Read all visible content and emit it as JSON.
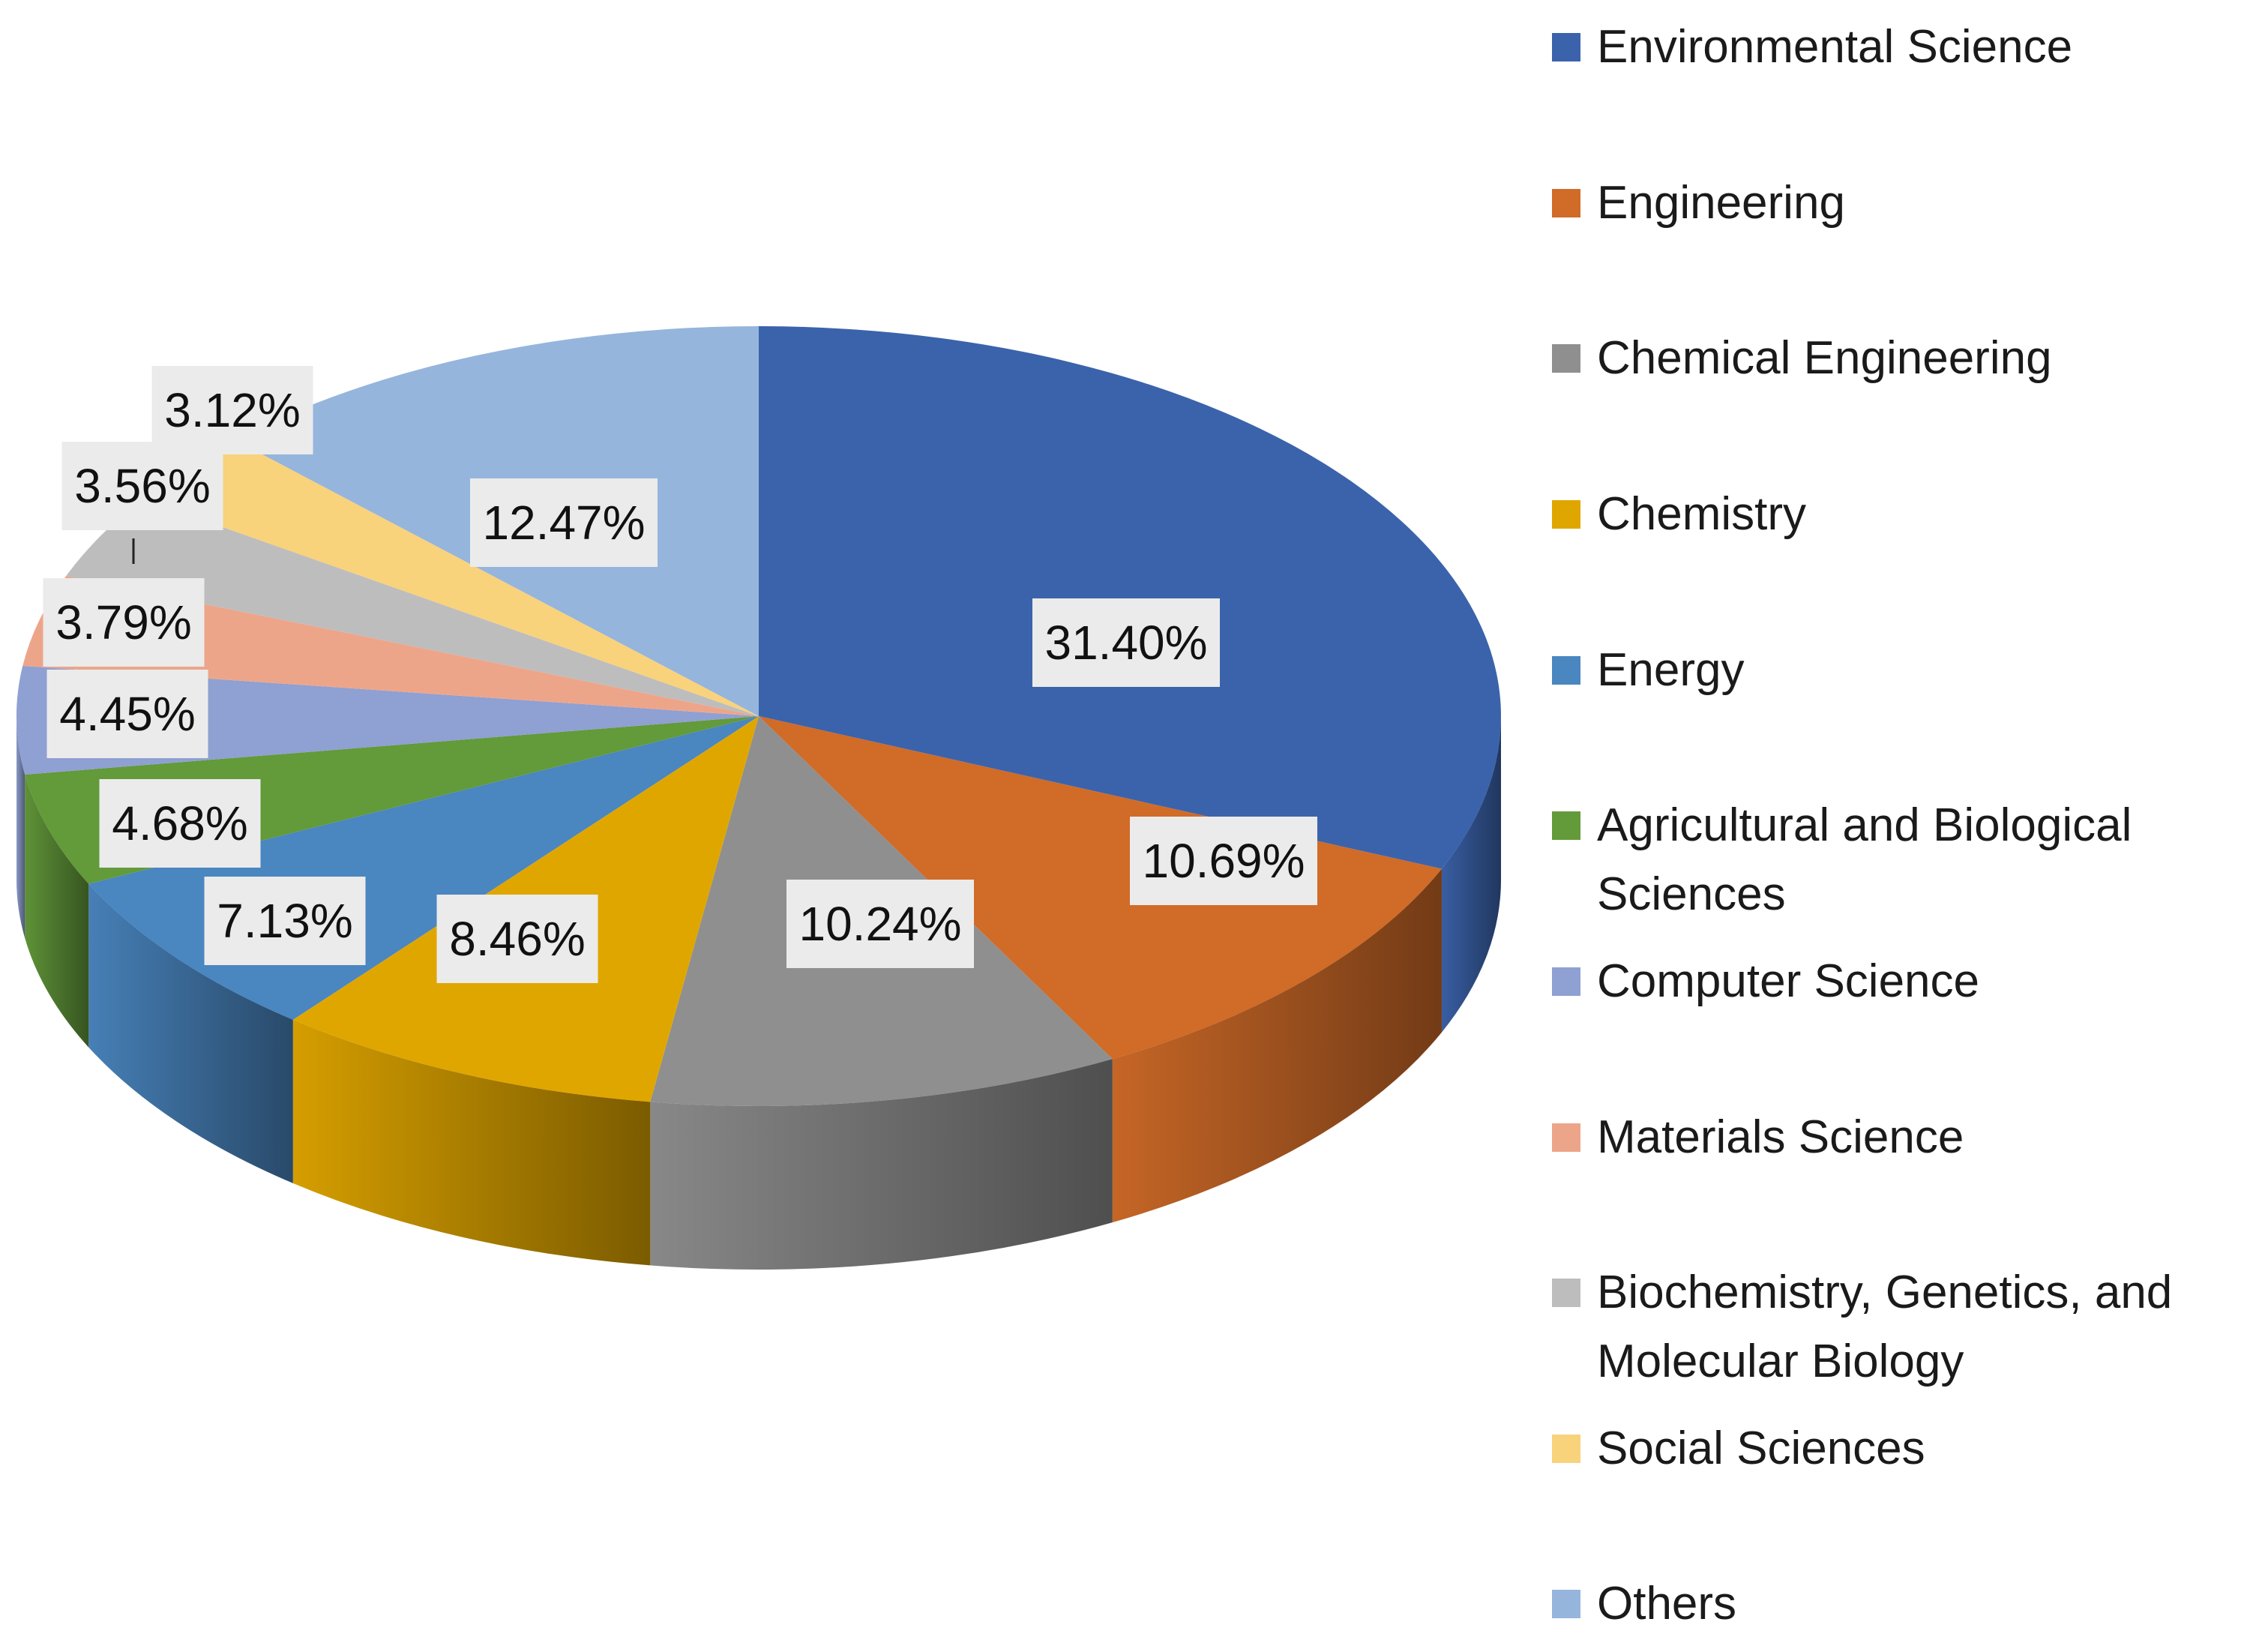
{
  "chart_data": {
    "type": "pie",
    "style": "3d",
    "title": "",
    "slices": [
      {
        "label": "Environmental Science",
        "value": 31.4,
        "display": "31.40%",
        "color": "#3B63AB"
      },
      {
        "label": "Engineering",
        "value": 10.69,
        "display": "10.69%",
        "color": "#D06B28"
      },
      {
        "label": "Chemical Engineering",
        "value": 10.24,
        "display": "10.24%",
        "color": "#8F8F8F"
      },
      {
        "label": "Chemistry",
        "value": 8.46,
        "display": "8.46%",
        "color": "#E0A600"
      },
      {
        "label": "Energy",
        "value": 7.13,
        "display": "7.13%",
        "color": "#4A86C0"
      },
      {
        "label": "Agricultural and Biological Sciences",
        "value": 4.68,
        "display": "4.68%",
        "color": "#639A3A"
      },
      {
        "label": "Computer Science",
        "value": 4.45,
        "display": "4.45%",
        "color": "#8FA0D2"
      },
      {
        "label": "Materials Science",
        "value": 3.79,
        "display": "3.79%",
        "color": "#EDA58A"
      },
      {
        "label": "Biochemistry, Genetics, and Molecular Biology",
        "value": 3.56,
        "display": "3.56%",
        "color": "#BDBDBD"
      },
      {
        "label": "Social Sciences",
        "value": 3.12,
        "display": "3.12%",
        "color": "#F9D27C"
      },
      {
        "label": "Others",
        "value": 12.47,
        "display": "12.47%",
        "color": "#95B5DC"
      }
    ],
    "legend_position": "right"
  }
}
